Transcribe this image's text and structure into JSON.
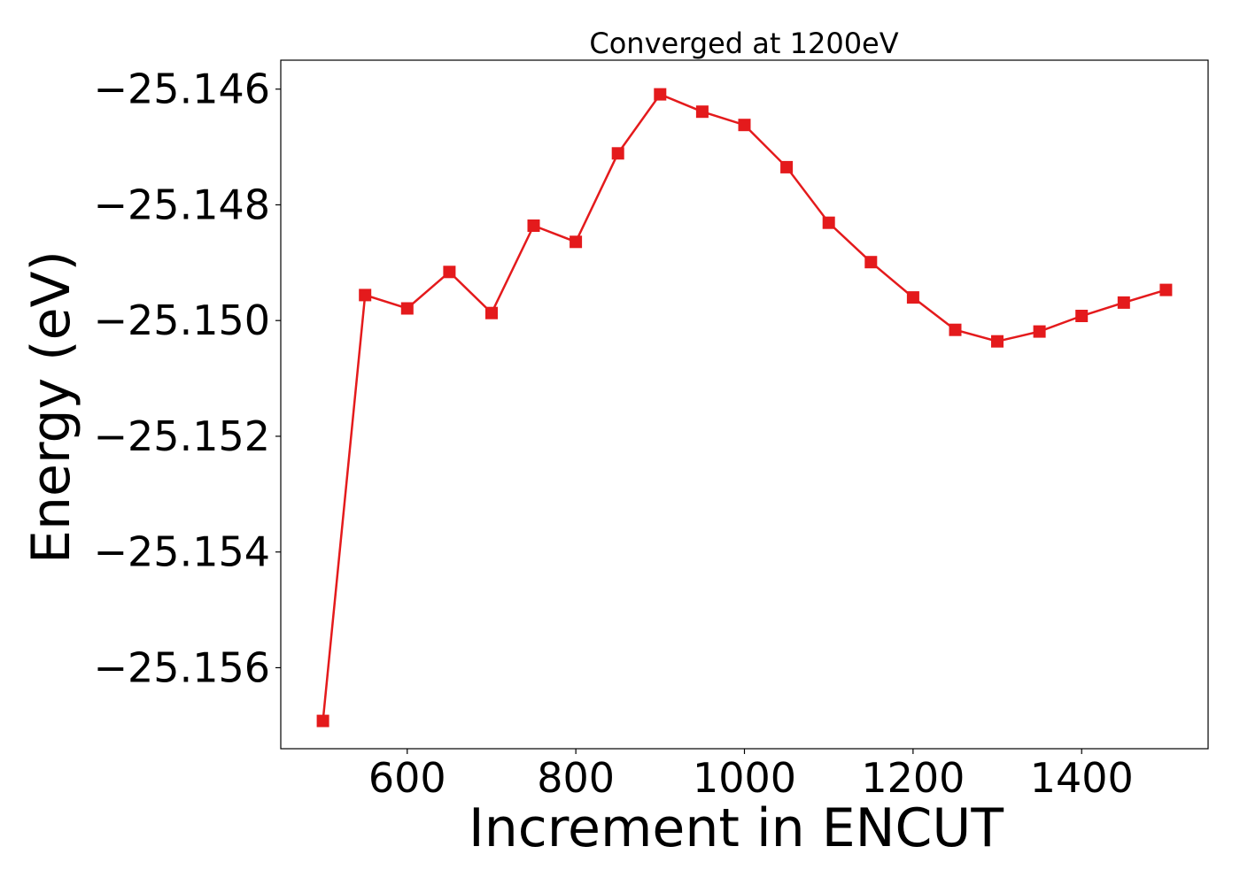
{
  "chart_data": {
    "type": "line",
    "title": "Converged at 1200eV",
    "xlabel": "Increment in ENCUT",
    "ylabel": "Energy (eV)",
    "xlim": [
      450,
      1550
    ],
    "ylim": [
      -25.1574,
      -25.1455
    ],
    "x_ticks": [
      600,
      800,
      1000,
      1200,
      1400
    ],
    "x_tick_labels": [
      "600",
      "800",
      "1000",
      "1200",
      "1400"
    ],
    "y_ticks": [
      -25.146,
      -25.148,
      -25.15,
      -25.152,
      -25.154,
      -25.156
    ],
    "y_tick_labels": [
      "−25.146",
      "−25.148",
      "−25.150",
      "−25.152",
      "−25.154",
      "−25.156"
    ],
    "grid": false,
    "marker": "square",
    "series": [
      {
        "color": "#e41a1c",
        "x": [
          500,
          550,
          600,
          650,
          700,
          750,
          800,
          850,
          900,
          950,
          1000,
          1050,
          1100,
          1150,
          1200,
          1250,
          1300,
          1350,
          1400,
          1450,
          1500
        ],
        "y": [
          -25.15692,
          -25.14956,
          -25.14979,
          -25.14916,
          -25.14987,
          -25.14836,
          -25.14864,
          -25.14711,
          -25.14609,
          -25.14639,
          -25.14662,
          -25.14735,
          -25.14831,
          -25.14899,
          -25.1496,
          -25.15016,
          -25.15036,
          -25.15019,
          -25.14992,
          -25.14969,
          -25.14947
        ]
      }
    ]
  }
}
